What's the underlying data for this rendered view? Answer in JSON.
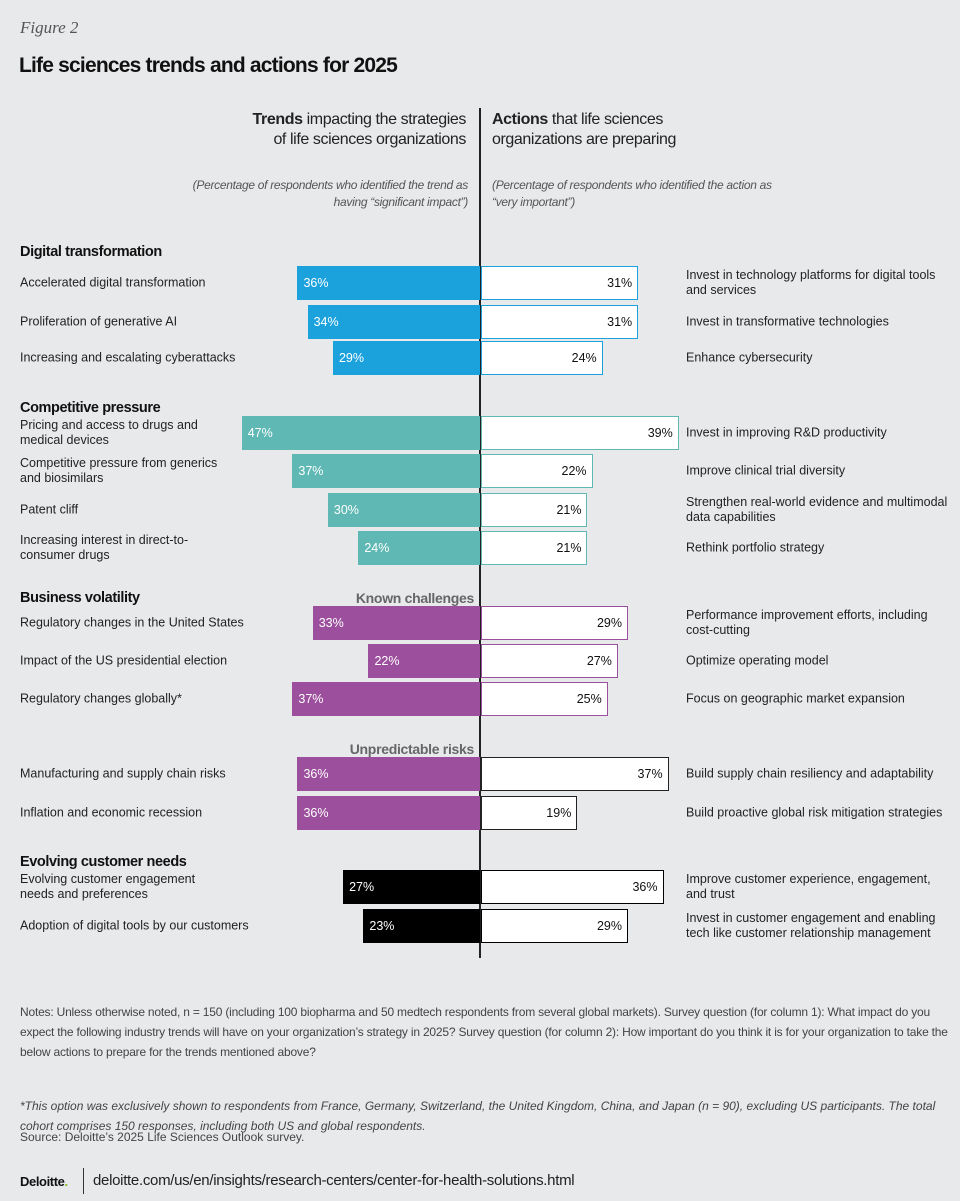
{
  "figure_label": "Figure 2",
  "title": "Life sciences trends and actions for 2025",
  "left_header": {
    "bold": "Trends",
    "rest": " impacting the strategies of life sciences organizations",
    "note": "(Percentage of respondents who identified the trend as having “significant impact”)"
  },
  "right_header": {
    "bold": "Actions",
    "rest": " that life sciences organizations are preparing",
    "note": "(Percentage of respondents who identified the action as “very important”)"
  },
  "chart_data": {
    "type": "bar",
    "orientation": "horizontal-diverging",
    "unit": "%",
    "series": [
      {
        "name": "Trends impacting the strategies of life sciences organizations"
      },
      {
        "name": "Actions that life sciences organizations are preparing"
      }
    ],
    "groups": [
      {
        "name": "Digital transformation",
        "color": "#1ba1dc",
        "rows": [
          {
            "trend": "Accelerated digital transformation",
            "trend_value": 36,
            "action": "Invest in technology platforms for digital tools and services",
            "action_value": 31
          },
          {
            "trend": "Proliferation of generative AI",
            "trend_value": 34,
            "action": "Invest in transformative technologies",
            "action_value": 31
          },
          {
            "trend": "Increasing and escalating cyberattacks",
            "trend_value": 29,
            "action": "Enhance cybersecurity",
            "action_value": 24
          }
        ]
      },
      {
        "name": "Competitive pressure",
        "color": "#5fb8b3",
        "rows": [
          {
            "trend": "Pricing and access to drugs and medical devices",
            "trend_value": 47,
            "action": "Invest in improving R&D productivity",
            "action_value": 39
          },
          {
            "trend": "Competitive pressure from generics and biosimilars",
            "trend_value": 37,
            "action": "Improve clinical trial diversity",
            "action_value": 22
          },
          {
            "trend": "Patent cliff",
            "trend_value": 30,
            "action": "Strengthen real-world evidence and multimodal data capabilities",
            "action_value": 21
          },
          {
            "trend": "Increasing interest in direct-to-consumer drugs",
            "trend_value": 24,
            "action": "Rethink portfolio strategy",
            "action_value": 21
          }
        ]
      },
      {
        "name": "Business volatility",
        "color": "#9c4f9c",
        "subgroups": [
          "Known challenges",
          "Unpredictable risks"
        ],
        "rows": [
          {
            "subgroup": "Known challenges",
            "trend": "Regulatory changes in the United States",
            "trend_value": 33,
            "action": "Performance improvement efforts, including cost-cutting",
            "action_value": 29
          },
          {
            "subgroup": "Known challenges",
            "trend": "Impact of the US presidential election",
            "trend_value": 22,
            "action": "Optimize operating model",
            "action_value": 27
          },
          {
            "subgroup": "Known challenges",
            "trend": "Regulatory changes globally*",
            "trend_value": 37,
            "action": "Focus on geographic market expansion",
            "action_value": 25
          },
          {
            "subgroup": "Unpredictable risks",
            "trend": "Manufacturing and supply chain risks",
            "trend_value": 36,
            "action": "Build supply chain resiliency and adaptability",
            "action_value": 37
          },
          {
            "subgroup": "Unpredictable risks",
            "trend": "Inflation and economic recession",
            "trend_value": 36,
            "action": "Build proactive global risk mitigation strategies",
            "action_value": 19
          }
        ]
      },
      {
        "name": "Evolving customer needs",
        "color": "#000000",
        "rows": [
          {
            "trend": "Evolving customer engagement needs and preferences",
            "trend_value": 27,
            "action": "Improve customer experience, engagement, and trust",
            "action_value": 36
          },
          {
            "trend": "Adoption of digital tools by our customers",
            "trend_value": 23,
            "action": "Invest in customer engagement and enabling tech like customer relationship management",
            "action_value": 29
          }
        ]
      }
    ]
  },
  "notes": "Notes: Unless otherwise noted, n = 150 (including 100 biopharma and 50 medtech respondents from several global markets). Survey question (for column 1): What impact do you expect the following industry trends will have on your organization’s strategy in 2025? Survey question (for column 2): How important do you think it is for your organization to take the below actions to prepare for the trends mentioned above?",
  "footnote": "*This option was exclusively shown to respondents from France, Germany, Switzerland, the United Kingdom, China, and Japan (n = 90), excluding US participants. The total cohort comprises 150 responses, including both US and global respondents.",
  "source": "Source: Deloitte’s 2025 Life Sciences Outlook survey.",
  "brand": {
    "logo": "Deloitte",
    "logo_dot": ".",
    "url": "deloitte.com/us/en/insights/research-centers/center-for-health-solutions.html"
  }
}
